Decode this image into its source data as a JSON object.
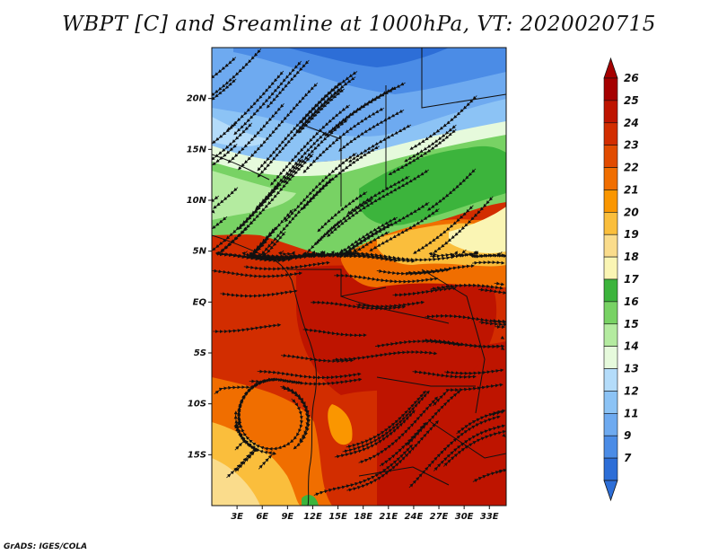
{
  "title": "WBPT [C] and Sreamline at 1000hPa, VT: 2020020715",
  "footer_credit": "GrADS: IGES/COLA",
  "map": {
    "region_lon": [
      0,
      35
    ],
    "region_lat": [
      -20,
      25
    ],
    "latitude_ticks": [
      {
        "value": 20,
        "label": "20N"
      },
      {
        "value": 15,
        "label": "15N"
      },
      {
        "value": 10,
        "label": "10N"
      },
      {
        "value": 5,
        "label": "5N"
      },
      {
        "value": 0,
        "label": "EQ"
      },
      {
        "value": -5,
        "label": "5S"
      },
      {
        "value": -10,
        "label": "10S"
      },
      {
        "value": -15,
        "label": "15S"
      }
    ],
    "longitude_ticks": [
      {
        "value": 3,
        "label": "3E"
      },
      {
        "value": 6,
        "label": "6E"
      },
      {
        "value": 9,
        "label": "9E"
      },
      {
        "value": 12,
        "label": "12E"
      },
      {
        "value": 15,
        "label": "15E"
      },
      {
        "value": 18,
        "label": "18E"
      },
      {
        "value": 21,
        "label": "21E"
      },
      {
        "value": 24,
        "label": "24E"
      },
      {
        "value": 27,
        "label": "27E"
      },
      {
        "value": 30,
        "label": "30E"
      },
      {
        "value": 33,
        "label": "33E"
      }
    ]
  },
  "colorbar": {
    "levels": [
      {
        "label": "26",
        "color": "#a50000"
      },
      {
        "label": "25",
        "color": "#be1400"
      },
      {
        "label": "24",
        "color": "#d22d00"
      },
      {
        "label": "23",
        "color": "#e14b00"
      },
      {
        "label": "22",
        "color": "#f06e00"
      },
      {
        "label": "21",
        "color": "#fa9600"
      },
      {
        "label": "20",
        "color": "#fabe3c"
      },
      {
        "label": "19",
        "color": "#fadc8c"
      },
      {
        "label": "18",
        "color": "#faf5b4"
      },
      {
        "label": "17",
        "color": "#3cb43c"
      },
      {
        "label": "16",
        "color": "#78d264"
      },
      {
        "label": "15",
        "color": "#b4eba0"
      },
      {
        "label": "14",
        "color": "#e6fadc"
      },
      {
        "label": "13",
        "color": "#b4dcfa"
      },
      {
        "label": "12",
        "color": "#8cc3f5"
      },
      {
        "label": "11",
        "color": "#6eaaf0"
      },
      {
        "label": "9",
        "color": "#4b8ce6"
      },
      {
        "label": "7",
        "color": "#2d6ed7"
      }
    ],
    "over_color": "#a50000",
    "under_color": "#2d6ed7"
  }
}
